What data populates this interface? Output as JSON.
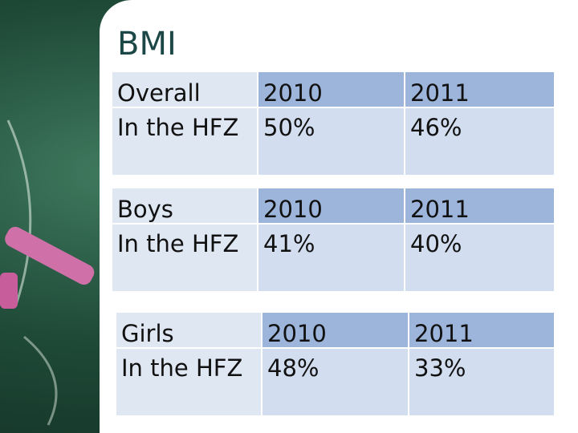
{
  "title": "BMI",
  "tables": [
    {
      "rows": [
        [
          "Overall",
          "2010",
          "2011"
        ],
        [
          "In the HFZ",
          "50%",
          "46%"
        ]
      ]
    },
    {
      "rows": [
        [
          "Boys",
          "2010",
          "2011"
        ],
        [
          "In the HFZ",
          "41%",
          "40%"
        ]
      ]
    },
    {
      "rows": [
        [
          "Girls",
          "2010",
          "2011"
        ],
        [
          "In the HFZ",
          "48%",
          "33%"
        ]
      ]
    }
  ]
}
